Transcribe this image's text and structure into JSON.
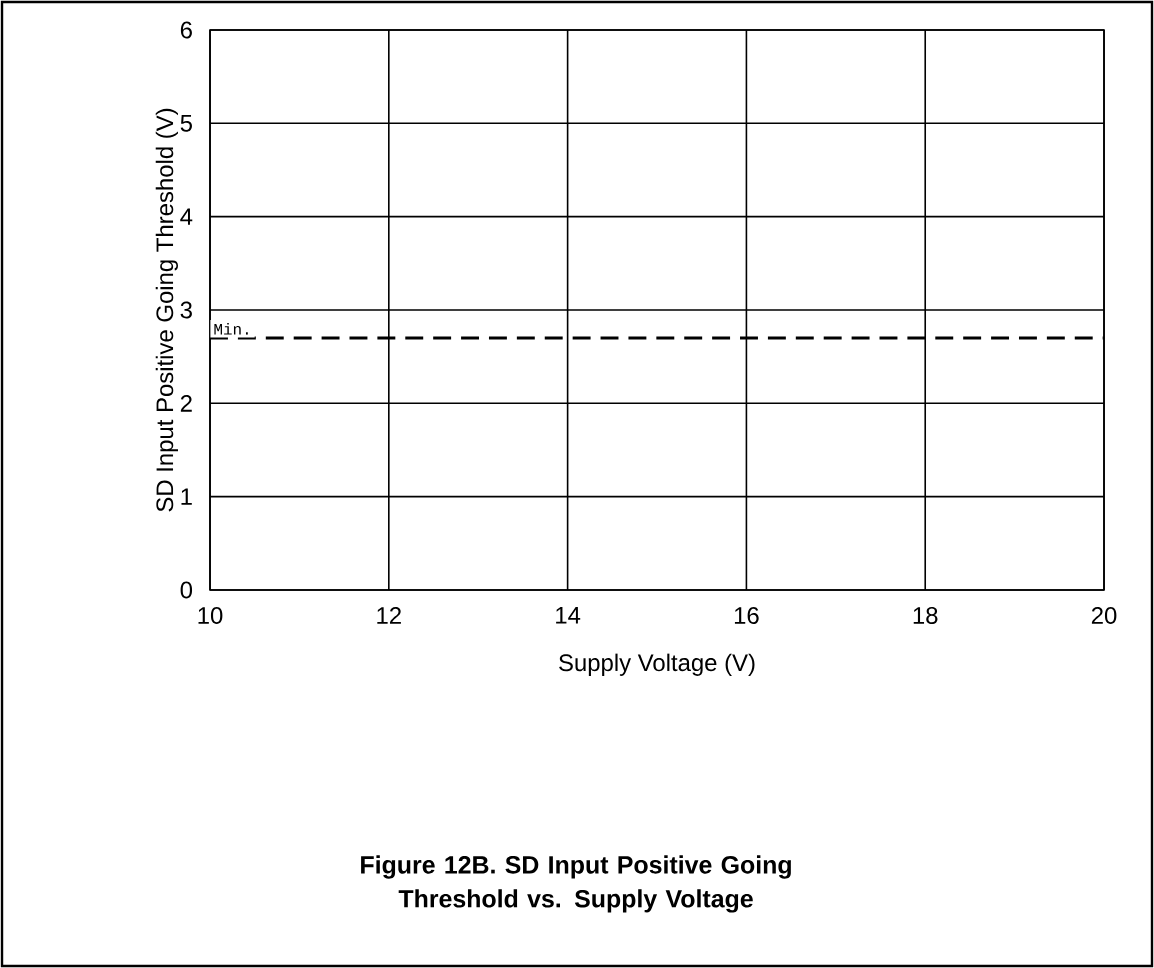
{
  "chart_data": {
    "type": "line",
    "title": "Figure 12B. SD Input Positive Going Threshold vs. Supply Voltage",
    "xlabel": "Supply Voltage (V)",
    "ylabel": "SD Input Positive Going Threshold (V)",
    "x": [
      10,
      20
    ],
    "series": [
      {
        "name": "Min.",
        "color": "#000000",
        "values": [
          2.7,
          2.7
        ],
        "line_style": "dashed"
      }
    ],
    "xlim": [
      10,
      20
    ],
    "ylim": [
      0,
      6
    ],
    "xticks": [
      10,
      12,
      14,
      16,
      18,
      20
    ],
    "yticks": [
      0,
      1,
      2,
      3,
      4,
      5,
      6
    ],
    "grid": true,
    "marker": "none"
  }
}
